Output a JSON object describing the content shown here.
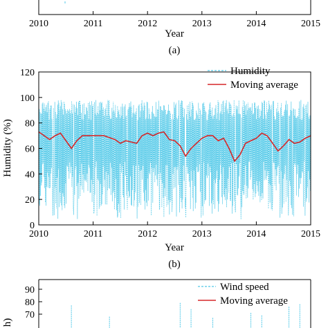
{
  "panel_a": {
    "xticks": [
      "2010",
      "2011",
      "2012",
      "2013",
      "2014",
      "2015"
    ],
    "xlabel": "Year",
    "caption": "(a)"
  },
  "panel_b": {
    "caption": "(b)"
  },
  "panel_c": {
    "ylabel_fragment": "h)",
    "yticks": [
      "90",
      "80",
      "70"
    ],
    "legend": [
      "Wind speed",
      "Moving average"
    ]
  },
  "chart_data": [
    {
      "type": "line",
      "panel": "b",
      "xlabel": "Year",
      "ylabel": "Humidity (%)",
      "xlim": [
        2010,
        2015
      ],
      "ylim": [
        0,
        120
      ],
      "xticks": [
        "2010",
        "2011",
        "2012",
        "2013",
        "2014",
        "2015"
      ],
      "yticks": [
        "0",
        "20",
        "40",
        "60",
        "80",
        "100",
        "120"
      ],
      "legend_position": "top-right",
      "colors": {
        "raw": "#4fc8e8",
        "average": "#d62728"
      },
      "series": [
        {
          "name": "Humidity",
          "style": "dashed",
          "envelope_upper": 98,
          "envelope_lower": 12
        },
        {
          "name": "Moving average",
          "style": "solid",
          "x": [
            2010.0,
            2010.1,
            2010.2,
            2010.3,
            2010.4,
            2010.5,
            2010.6,
            2010.7,
            2010.8,
            2010.9,
            2011.0,
            2011.2,
            2011.4,
            2011.5,
            2011.6,
            2011.8,
            2011.9,
            2012.0,
            2012.1,
            2012.2,
            2012.3,
            2012.4,
            2012.5,
            2012.6,
            2012.7,
            2012.8,
            2012.9,
            2013.0,
            2013.1,
            2013.2,
            2013.3,
            2013.4,
            2013.5,
            2013.6,
            2013.7,
            2013.8,
            2013.9,
            2014.0,
            2014.1,
            2014.2,
            2014.3,
            2014.4,
            2014.5,
            2014.6,
            2014.7,
            2014.8,
            2014.9,
            2015.0
          ],
          "y": [
            73,
            70,
            67,
            70,
            72,
            66,
            60,
            66,
            70,
            70,
            70,
            70,
            67,
            64,
            66,
            64,
            70,
            72,
            70,
            72,
            73,
            67,
            66,
            62,
            54,
            60,
            64,
            68,
            70,
            70,
            66,
            68,
            60,
            50,
            55,
            64,
            66,
            68,
            72,
            70,
            64,
            58,
            62,
            67,
            64,
            65,
            68,
            70
          ]
        }
      ]
    }
  ]
}
